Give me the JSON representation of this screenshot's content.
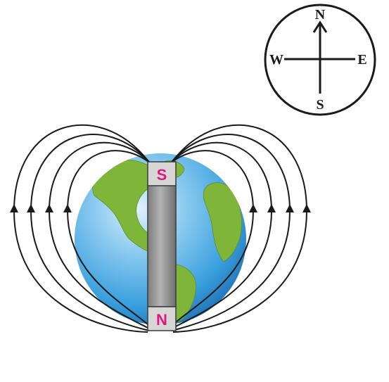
{
  "compass": {
    "north": "N",
    "south": "S",
    "east": "E",
    "west": "W"
  },
  "magnet": {
    "top_pole": "S",
    "bottom_pole": "N",
    "pole_label_color": "#e0197d",
    "pole_cap_color": "#d6d6d6",
    "bar_color": "#9a9a9a"
  },
  "colors": {
    "ocean": "#3aa0de",
    "land": "#7fb539",
    "field_lines": "#1a1a1a"
  }
}
